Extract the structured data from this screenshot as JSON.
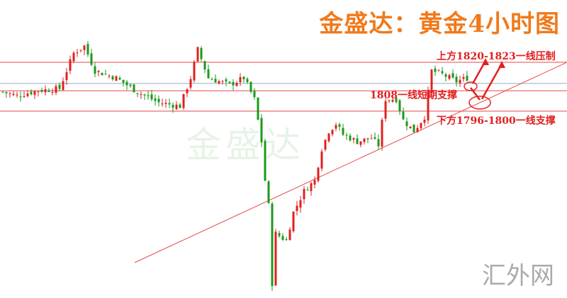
{
  "title": "金盛达：黄金4小时图",
  "watermark": "金盛达",
  "logo": "汇外网",
  "annotations": {
    "resistance": "上方1820-1823一线压制",
    "short_support": "1808一线短期支撑",
    "support": "下方1796-1800一线支撑"
  },
  "colors": {
    "up": "#e02020",
    "down": "#1a9a1a",
    "level": "#e84a4a",
    "title": "#f07a1c",
    "current": "#9aa6c0"
  },
  "chart_data": {
    "type": "candlestick",
    "title": "金盛达：黄金4小时图",
    "levels": [
      1822,
      1808,
      1798
    ],
    "current_price_line": 1811.6,
    "points": [
      [
        0,
        1807.4
      ],
      [
        4,
        1805.6
      ],
      [
        10,
        1808.1
      ],
      [
        16,
        1809.1
      ],
      [
        20,
        1826.5
      ],
      [
        23,
        1830
      ],
      [
        26,
        1817.8
      ],
      [
        32,
        1814.3
      ],
      [
        38,
        1807.4
      ],
      [
        44,
        1802.2
      ],
      [
        50,
        1800.4
      ],
      [
        53,
        1814.3
      ],
      [
        55,
        1828.3
      ],
      [
        58,
        1814.3
      ],
      [
        64,
        1810.9
      ],
      [
        68,
        1814.3
      ],
      [
        71,
        1803.9
      ],
      [
        73,
        1783
      ],
      [
        74,
        1763.9
      ],
      [
        75,
        1751.7
      ],
      [
        76,
        1713.4
      ],
      [
        77,
        1737.8
      ],
      [
        80,
        1734.3
      ],
      [
        82,
        1748.2
      ],
      [
        85,
        1758.7
      ],
      [
        88,
        1763.9
      ],
      [
        90,
        1779.5
      ],
      [
        92,
        1788.2
      ],
      [
        94,
        1791.7
      ],
      [
        96,
        1786.5
      ],
      [
        100,
        1783
      ],
      [
        104,
        1784.8
      ],
      [
        106,
        1781.3
      ],
      [
        108,
        1803.9
      ],
      [
        111,
        1803.9
      ],
      [
        113,
        1793.5
      ],
      [
        116,
        1788.2
      ],
      [
        119,
        1795.2
      ],
      [
        121,
        1817.8
      ],
      [
        124,
        1816.1
      ],
      [
        128,
        1812.6
      ],
      [
        131,
        1814.3
      ]
    ]
  }
}
